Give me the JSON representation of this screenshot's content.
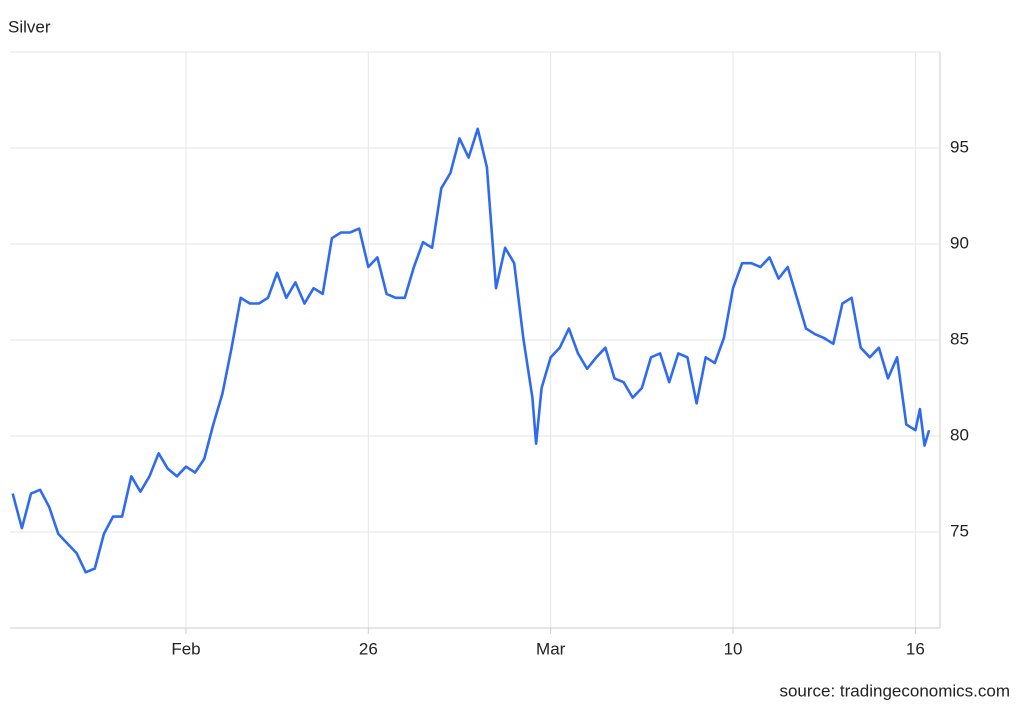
{
  "chart_data": {
    "type": "line",
    "title": "Silver",
    "source": "source: tradingeconomics.com",
    "x": [
      1,
      2,
      3,
      4,
      5,
      6,
      7,
      8,
      9,
      10,
      11,
      12,
      13,
      14,
      15,
      16,
      17,
      18,
      19,
      20,
      21,
      22,
      23,
      24,
      25,
      26,
      27,
      28,
      29,
      30,
      31,
      32,
      33,
      34,
      35,
      36,
      37,
      38,
      39,
      40,
      41,
      42,
      43,
      44,
      45,
      46,
      47,
      48,
      49,
      50,
      51,
      52,
      53,
      54,
      55,
      56,
      57,
      58,
      58.4,
      59,
      60,
      61,
      62,
      63,
      64,
      65,
      66,
      67,
      68,
      69,
      70,
      71,
      72,
      73,
      74,
      75,
      76,
      77,
      78,
      79,
      80,
      81,
      82,
      83,
      84,
      85,
      86,
      87,
      88,
      89,
      90,
      91,
      92,
      93,
      94,
      95,
      96,
      97,
      98,
      99,
      100,
      100.5,
      101,
      101.5
    ],
    "series": [
      {
        "name": "Silver",
        "color": "#2f6bf0",
        "values": [
          77.0,
          75.2,
          77.0,
          77.2,
          76.3,
          74.9,
          74.4,
          73.9,
          72.9,
          73.1,
          74.9,
          75.8,
          75.8,
          77.9,
          77.1,
          77.9,
          79.1,
          78.3,
          77.9,
          78.4,
          78.1,
          78.8,
          80.6,
          82.2,
          84.6,
          87.2,
          86.9,
          86.9,
          87.2,
          88.5,
          87.2,
          88.0,
          86.9,
          87.7,
          87.4,
          90.3,
          90.6,
          90.6,
          90.8,
          88.8,
          89.3,
          87.4,
          87.2,
          87.2,
          88.8,
          90.1,
          89.8,
          92.9,
          93.7,
          95.5,
          94.5,
          96.0,
          94.0,
          87.7,
          89.8,
          89.0,
          85.1,
          82.0,
          79.6,
          82.5,
          84.1,
          84.6,
          85.6,
          84.3,
          83.5,
          84.1,
          84.6,
          83.0,
          82.8,
          82.0,
          82.5,
          84.1,
          84.3,
          82.8,
          84.3,
          84.1,
          81.7,
          84.1,
          83.8,
          85.1,
          87.7,
          89.0,
          89.0,
          88.8,
          89.3,
          88.2,
          88.8,
          87.2,
          85.6,
          85.3,
          85.1,
          84.8,
          86.9,
          87.2,
          84.6,
          84.1,
          84.6,
          83.0,
          84.1,
          80.6,
          80.3,
          81.4,
          79.5,
          80.3
        ]
      }
    ],
    "xlim": [
      0.7,
      102.7
    ],
    "xticks": [
      {
        "value": 20,
        "label": "Feb"
      },
      {
        "value": 40,
        "label": "26"
      },
      {
        "value": 60,
        "label": "Mar"
      },
      {
        "value": 80,
        "label": "10"
      },
      {
        "value": 100,
        "label": "16"
      }
    ],
    "ylim": [
      70,
      100
    ],
    "yticks": [
      75,
      80,
      85,
      90,
      95
    ],
    "grid": true
  }
}
